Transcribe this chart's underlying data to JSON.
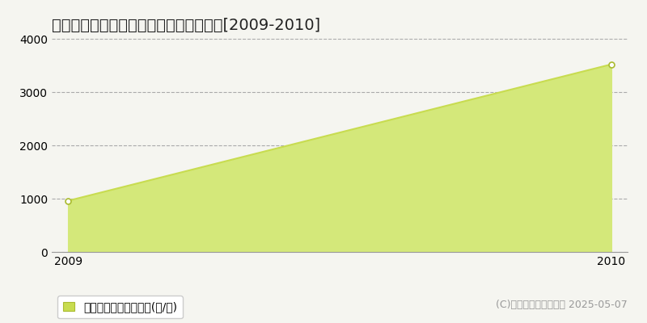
{
  "title": "多可郡多可町中区曽我井　林地価格推移[2009-2010]",
  "years": [
    2009,
    2010
  ],
  "values": [
    960,
    3520
  ],
  "line_color": "#c8dc50",
  "fill_color": "#d4e87a",
  "marker_face_color": "#ffffff",
  "marker_edge_color": "#aabb30",
  "bg_color": "#f5f5f0",
  "plot_bg_color": "#f5f5f0",
  "grid_color": "#aaaaaa",
  "ylim": [
    0,
    4000
  ],
  "yticks": [
    0,
    1000,
    2000,
    3000,
    4000
  ],
  "legend_label": "林地価格　平均坪単価(円/坪)",
  "copyright_text": "(C)土地価格ドットコム 2025-05-07",
  "title_fontsize": 14,
  "tick_fontsize": 10,
  "legend_fontsize": 10,
  "copyright_fontsize": 9,
  "legend_square_color": "#c8dc50"
}
